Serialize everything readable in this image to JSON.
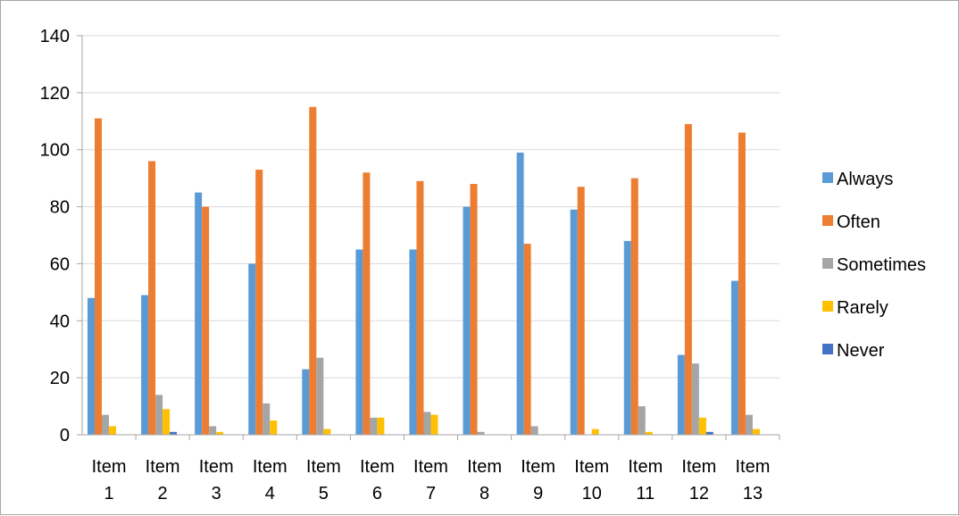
{
  "chart_data": {
    "type": "bar",
    "categories": [
      "Item 1",
      "Item 2",
      "Item 3",
      "Item 4",
      "Item 5",
      "Item 6",
      "Item 7",
      "Item 8",
      "Item 9",
      "Item 10",
      "Item 11",
      "Item 12",
      "Item 13"
    ],
    "series": [
      {
        "name": "Always",
        "color": "#5b9bd5",
        "values": [
          48,
          49,
          85,
          60,
          23,
          65,
          65,
          80,
          99,
          79,
          68,
          28,
          54
        ]
      },
      {
        "name": "Often",
        "color": "#ed7d31",
        "values": [
          111,
          96,
          80,
          93,
          115,
          92,
          89,
          88,
          67,
          87,
          90,
          109,
          106
        ]
      },
      {
        "name": "Sometimes",
        "color": "#a5a5a5",
        "values": [
          7,
          14,
          3,
          11,
          27,
          6,
          8,
          1,
          3,
          0,
          10,
          25,
          7
        ]
      },
      {
        "name": "Rarely",
        "color": "#ffc000",
        "values": [
          3,
          9,
          1,
          5,
          2,
          6,
          7,
          0,
          0,
          2,
          1,
          6,
          2
        ]
      },
      {
        "name": "Never",
        "color": "#4472c4",
        "values": [
          0,
          1,
          0,
          0,
          0,
          0,
          0,
          0,
          0,
          0,
          0,
          1,
          0
        ]
      }
    ],
    "ylim": [
      0,
      140
    ],
    "yticks": [
      0,
      20,
      40,
      60,
      80,
      100,
      120,
      140
    ],
    "grid": true,
    "legend_position": "right"
  }
}
